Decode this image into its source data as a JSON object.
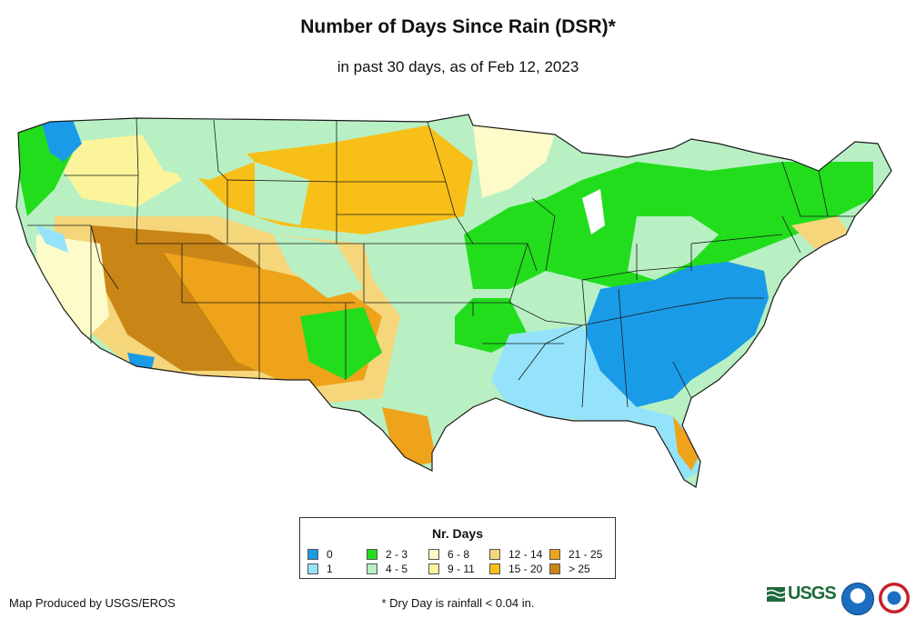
{
  "title": "Number of Days Since Rain (DSR)*",
  "subtitle": "in past 30 days, as of Feb 12, 2023",
  "legend": {
    "title": "Nr. Days",
    "items": [
      {
        "label": "0",
        "color": "#1a9be8"
      },
      {
        "label": "1",
        "color": "#94e3fb"
      },
      {
        "label": "2 - 3",
        "color": "#22dd1c"
      },
      {
        "label": "4 - 5",
        "color": "#b8f0c4"
      },
      {
        "label": "6 - 8",
        "color": "#fdfbc9"
      },
      {
        "label": "9 - 11",
        "color": "#fcf49b"
      },
      {
        "label": "12 - 14",
        "color": "#f5d67a"
      },
      {
        "label": "15 - 20",
        "color": "#f8bf18"
      },
      {
        "label": "21 - 25",
        "color": "#eea31a"
      },
      {
        "label": "> 25",
        "color": "#c98516"
      }
    ]
  },
  "credit": "Map Produced by USGS/EROS",
  "footnote": "* Dry Day is rainfall < 0.04 in.",
  "logos": {
    "usgs": "USGS",
    "noaa": "noaa-logo",
    "nws": "nws-logo"
  }
}
